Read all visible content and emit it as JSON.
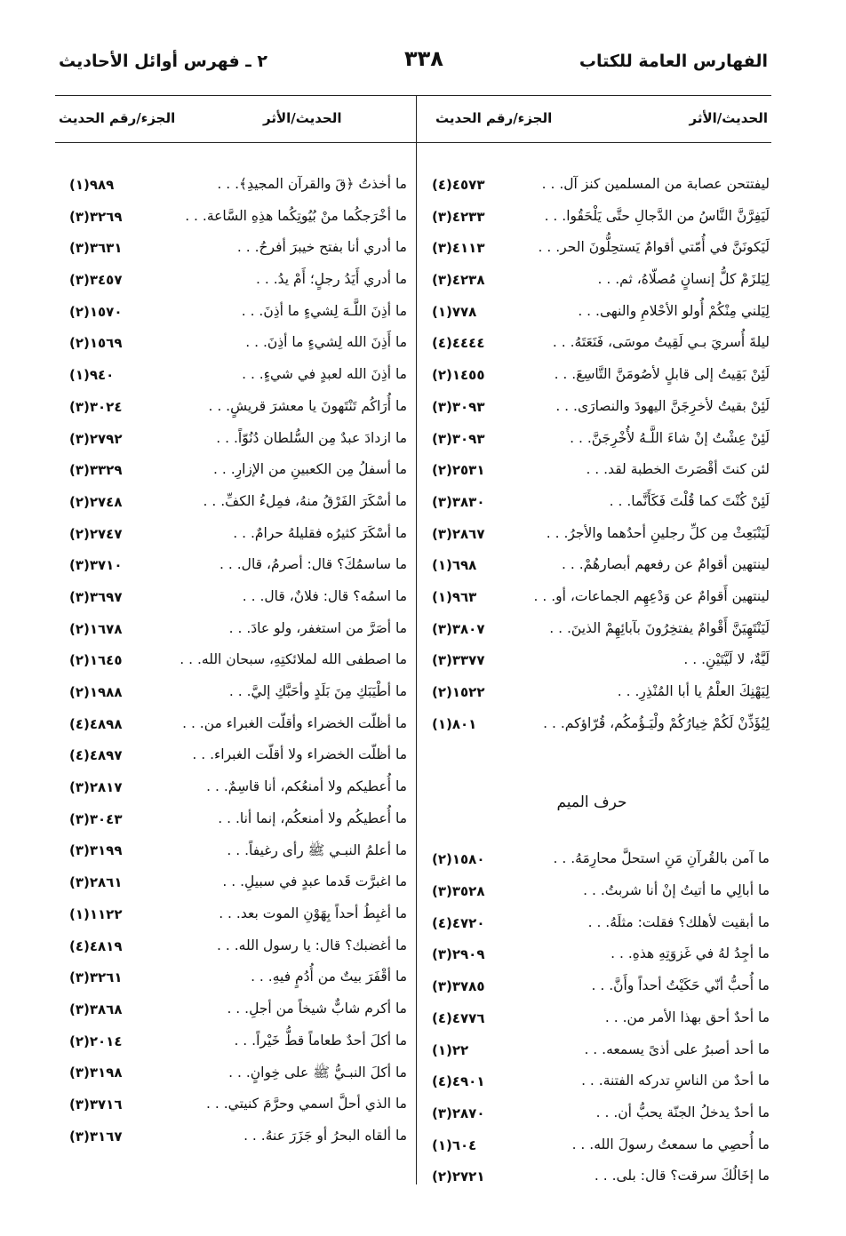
{
  "header": {
    "book_index_title": "الفهارس العامة للكتاب",
    "page_number": "٣٣٨",
    "section_title": "٢ ـ فهرس أوائل الأحاديث"
  },
  "columns_header": {
    "hadith": "الحديث/الأثر",
    "ref": "الجزء/رقم الحديث"
  },
  "right_column": {
    "entries_top": [
      {
        "text": "ليفتتحن عصابة من المسلمين كنز آل. . .",
        "ref": "٤٥٧٣(٤)"
      },
      {
        "text": "لَيَفِرَّنَّ النَّاسُ من الدَّجالِ حتَّى يَلْحَقُوا. . .",
        "ref": "٤٢٣٣(٣)"
      },
      {
        "text": "لَيَكونَنَّ في أُمّتي أقوامٌ يَستحِلُّونَ الحر. . .",
        "ref": "٤١١٣(٣)"
      },
      {
        "text": "لِيَلزَمْ كلُّ إنسانٍ مُصلّاهُ، ثم. . .",
        "ref": "٤٢٣٨(٣)"
      },
      {
        "text": "لِيَلني مِنْكُمْ أُولو الأحْلامِ والنهى. . .",
        "ref": "٧٧٨(١)"
      },
      {
        "text": "ليلةَ أُسريَ بـي لَقِيتُ موسَى، فَنَعَتَهُ. . .",
        "ref": "٤٤٤٤(٤)"
      },
      {
        "text": "لَئِنْ بَقِيتُ إلى قابلٍ لأصُومَنَّ التَّاسِعَ. . .",
        "ref": "١٤٥٥(٢)"
      },
      {
        "text": "لَئِنْ بقيتُ لأخرِجَنَّ اليهودَ والنصارَى. . .",
        "ref": "٣٠٩٣(٣)"
      },
      {
        "text": "لَئِنْ عِشْتُ إنْ شاءَ اللَّـهُ لأُخْرِجَنَّ. . .",
        "ref": "٣٠٩٣(٣)"
      },
      {
        "text": "لئن كنتَ أقْصَرتَ الخطبة لقد. . .",
        "ref": "٢٥٣١(٢)"
      },
      {
        "text": "لَئِنْ كُنْتَ كما قُلْتَ فَكَأَنَّما. . .",
        "ref": "٣٨٣٠(٣)"
      },
      {
        "text": "لَيَنْبَعِثْ مِن كلِّ رجلينِ أحدُهما والأجرُ. . .",
        "ref": "٢٨٦٧(٣)"
      },
      {
        "text": "لينتهين أقوامٌ عن رفعهم أبصارهُمْ. . .",
        "ref": "٦٩٨(١)"
      },
      {
        "text": "لينتهين أَقوامٌ عن وَدْعِهِم الجماعات، أو. . .",
        "ref": "٩٦٣(١)"
      },
      {
        "text": "لَيَنْتَهِيَنَّ أَقْوامٌ يفتخِرُونَ بآبائِهِمْ الذينَ. . .",
        "ref": "٣٨٠٧(٣)"
      },
      {
        "text": "لَيَّةٌ، لا لَيَّتَيْنِ. . .",
        "ref": "٣٣٧٧(٣)"
      },
      {
        "text": "لِيَهْنِكَ العلْمُ يا أبا المُنْذِرِ. . .",
        "ref": "١٥٢٢(٢)"
      },
      {
        "text": "لِيُؤَذِّنْ لَكُمْ خِيارُكُمْ ولْيَـؤُمكُم، قُرّاؤكم. . .",
        "ref": "٨٠١(١)"
      }
    ],
    "section_heading": "حرف الميم",
    "entries_bottom": [
      {
        "text": "ما آمن بالقُرآنِ مَنِ استحلَّ محارِمَهُ. . .",
        "ref": "١٥٨٠(٢)"
      },
      {
        "text": "ما أبالِي ما أتيتُ إنْ أنا شربتُ. . .",
        "ref": "٣٥٢٨(٣)"
      },
      {
        "text": "ما أبقيت لأهلك؟ فقلت: مثلَهُ. . .",
        "ref": "٤٧٢٠(٤)"
      },
      {
        "text": "ما أجِدُ لهُ في غَزوَتِهِ هذهِ. . .",
        "ref": "٢٩٠٩(٣)"
      },
      {
        "text": "ما أُحبُّ أنّي حَكَيْتُ أحداً وأَنَّ. . .",
        "ref": "٣٧٨٥(٣)"
      },
      {
        "text": "ما أحدٌ أحق بهذا الأمر من. . .",
        "ref": "٤٧٧٦(٤)"
      },
      {
        "text": "ما أحد أصبرُ على أذىً يسمعه. . .",
        "ref": "٢٢(١)"
      },
      {
        "text": "ما أحدٌ من الناسِ تدركه الفتنة. . .",
        "ref": "٤٩٠١(٤)"
      },
      {
        "text": "ما أحدٌ يدخلُ الجنّة يحبُّ أن. . .",
        "ref": "٢٨٧٠(٣)"
      },
      {
        "text": "ما أُحصِي ما سمعتُ رسولَ الله. . .",
        "ref": "٦٠٤(١)"
      },
      {
        "text": "ما إخَالُكَ سرقت؟ قال: بلى. . .",
        "ref": "٢٧٢١(٢)"
      }
    ]
  },
  "left_column": {
    "entries": [
      {
        "text": "ما أخذتُ ﴿قَ والقرآن المجيدِ﴾. . .",
        "ref": "٩٨٩(١)"
      },
      {
        "text": "ما أخْرَجكُما منْ بُيُوتِكُما هذِهِ السَّاعة. . .",
        "ref": "٣٢٦٩(٣)"
      },
      {
        "text": "ما أدري أنا بفتح خيبرَ أفرحُ. . .",
        "ref": "٣٦٣١(٣)"
      },
      {
        "text": "ما أدري أَيَدُ رجلٍ؛ أَمْ يدُ. . .",
        "ref": "٣٤٥٧(٣)"
      },
      {
        "text": "ما أذِنَ اللَّـهَ لِشيءٍ ما أذِنَ. . .",
        "ref": "١٥٧٠(٢)"
      },
      {
        "text": "ما أَذِنَ الله لِشيءٍ ما أذِنَ. . .",
        "ref": "١٥٦٩(٢)"
      },
      {
        "text": "ما أذِنَ الله لعبدٍ في شيءٍ. . .",
        "ref": "٩٤٠(١)"
      },
      {
        "text": "ما أُرَاكُم تَنْتَهونَ يا معشرَ قريشٍ. . .",
        "ref": "٣٠٢٤(٣)"
      },
      {
        "text": "ما ازدادَ عبدٌ مِن السُّلطان دُنُوّاً. . .",
        "ref": "٢٧٩٢(٣)"
      },
      {
        "text": "ما أسفلُ مِن الكعبينِ من الإزارِ. . .",
        "ref": "٣٣٢٩(٣)"
      },
      {
        "text": "ما أسْكَرَ الفَرْقُ منهُ، فمِلءُ الكفِّ. . .",
        "ref": "٢٧٤٨(٢)"
      },
      {
        "text": "ما أسْكَرَ كثيرُه فقليلهُ حرامٌ. . .",
        "ref": "٢٧٤٧(٢)"
      },
      {
        "text": "ما ساسمُكَ؟ قال: أصرمُ، قال. . .",
        "ref": "٣٧١٠(٣)"
      },
      {
        "text": "ما اسمُه؟ قال: فلانٌ، قال. . .",
        "ref": "٣٦٩٧(٣)"
      },
      {
        "text": "ما أصَرَّ من استغفر، ولو عادَ. . .",
        "ref": "١٦٧٨(٢)"
      },
      {
        "text": "ما اصطفى الله لملائكتِهِ، سبحان الله. . .",
        "ref": "١٦٤٥(٢)"
      },
      {
        "text": "ما أطْيَبَكِ مِنَ بَلَدٍ وأحَبَّكِ إليَّ. . .",
        "ref": "١٩٨٨(٢)"
      },
      {
        "text": "ما أظلّت الخضراء وأقلّت الغبراء من. . .",
        "ref": "٤٨٩٨(٤)"
      },
      {
        "text": "ما أظلّت الخضراء ولا أقلّت الغبراء. . .",
        "ref": "٤٨٩٧(٤)"
      },
      {
        "text": "ما أُعطيكم ولا أمنعُكم، أنا قاسِمٌ. . .",
        "ref": "٢٨١٧(٣)"
      },
      {
        "text": "ما أُعطيكُم ولا أمنعكُم، إنما أنا. . .",
        "ref": "٣٠٤٣(٣)"
      },
      {
        "text": "ما أعلمُ النبـي ﷺ رأى رغيفاً. . .",
        "ref": "٣١٩٩(٣)"
      },
      {
        "text": "ما اغبرَّت قَدما عبدٍ في سبيلِ. . .",
        "ref": "٢٨٦١(٣)"
      },
      {
        "text": "ما أغبِطُ أحداً بِهَوْنِ الموت بعد. . .",
        "ref": "١١٢٢(١)"
      },
      {
        "text": "ما أغضبك؟ قال: يا رسول الله. . .",
        "ref": "٤٨١٩(٤)"
      },
      {
        "text": "ما أقْفَرَ بيتٌ من أُدُمٍ فيهِ. . .",
        "ref": "٣٢٦١(٣)"
      },
      {
        "text": "ما أكرم شابٌّ شيخاً من أجلِ. . .",
        "ref": "٣٨٦٨(٣)"
      },
      {
        "text": "ما أكلَ أحدٌ طعاماً قطُّ خَيْراً. . .",
        "ref": "٢٠١٤(٢)"
      },
      {
        "text": "ما أكلَ النبـيُّ ﷺ على خِوانٍ. . .",
        "ref": "٣١٩٨(٣)"
      },
      {
        "text": "ما الذي أحلَّ اسمي وحرَّمَ كنيتي. . .",
        "ref": "٣٧١٦(٣)"
      },
      {
        "text": "ما ألقاه البحرُ أو جَزَرَ عنهُ. . .",
        "ref": "٣١٦٧(٣)"
      }
    ]
  }
}
